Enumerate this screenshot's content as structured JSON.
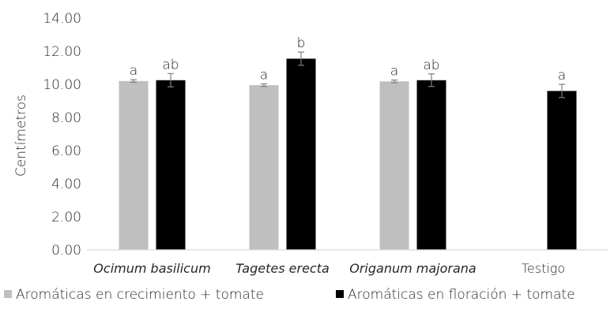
{
  "chart_data": {
    "type": "bar",
    "categories": [
      "Ocimum basilicum",
      "Tagetes erecta",
      "Origanum majorana",
      "Testigo"
    ],
    "categories_italic": [
      true,
      true,
      true,
      false
    ],
    "ylabel": "Centímetros",
    "ylim": [
      0,
      14
    ],
    "yticks": [
      "0.00",
      "2.00",
      "4.00",
      "6.00",
      "8.00",
      "10.00",
      "12.00",
      "14.00"
    ],
    "grid": false,
    "legend_position": "bottom",
    "series": [
      {
        "name": "Aromáticas en crecimiento + tomate",
        "color": "#bfbfbf",
        "values": [
          10.2,
          9.95,
          10.18,
          null
        ],
        "errors": [
          0.08,
          0.08,
          0.08,
          null
        ],
        "labels": [
          "a",
          "a",
          "a",
          null
        ]
      },
      {
        "name": "Aromáticas en floración + tomate",
        "color": "#000000",
        "values": [
          10.25,
          11.55,
          10.25,
          9.6
        ],
        "errors": [
          0.4,
          0.4,
          0.38,
          0.4
        ],
        "labels": [
          "ab",
          "b",
          "ab",
          "a"
        ]
      }
    ]
  }
}
